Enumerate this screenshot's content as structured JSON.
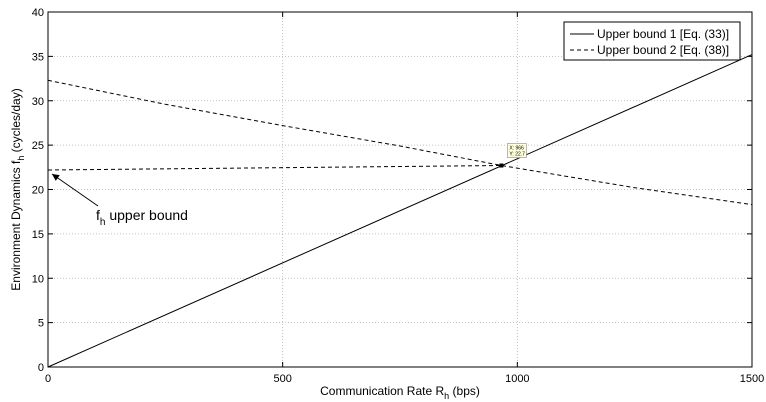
{
  "chart_data": {
    "type": "line",
    "xlabel": "Communication Rate R",
    "xlabel_sub": "h",
    "xlabel_suffix": " (bps)",
    "ylabel": "Environment Dynamics f",
    "ylabel_sub": "h",
    "ylabel_suffix": "  (cycles/day)",
    "xlim": [
      0,
      1500
    ],
    "ylim": [
      0,
      40
    ],
    "xticks": [
      0,
      500,
      1000,
      1500
    ],
    "yticks": [
      0,
      5,
      10,
      15,
      20,
      25,
      30,
      35,
      40
    ],
    "grid": true,
    "legend_position": "top-right",
    "series": [
      {
        "name": "Upper bound 1 [Eq. (33)]",
        "style": "solid",
        "x": [
          0,
          1500
        ],
        "y": [
          0,
          35.2
        ]
      },
      {
        "name": "Upper bound 2 [Eq. (38)]",
        "style": "dashed",
        "x": [
          0,
          250,
          500,
          750,
          966,
          1250,
          1500
        ],
        "y": [
          32.3,
          29.6,
          27.2,
          24.9,
          22.7,
          20.2,
          18.3
        ]
      },
      {
        "name": "",
        "style": "dashed",
        "x": [
          0,
          966
        ],
        "y": [
          22.2,
          22.7
        ]
      }
    ],
    "datatip": {
      "x": 966,
      "y": 22.7,
      "x_text": "X: 966",
      "y_text": "Y: 22.7"
    },
    "annotation": {
      "text_main": "f",
      "text_sub": "h",
      "text_rest": " upper bound",
      "arrow_to": [
        0,
        22.2
      ]
    }
  },
  "colors": {
    "axes": "#000000",
    "grid": "#b0b0b0",
    "datatip_bg": "#ffffdd",
    "datatip_border": "#999999"
  }
}
